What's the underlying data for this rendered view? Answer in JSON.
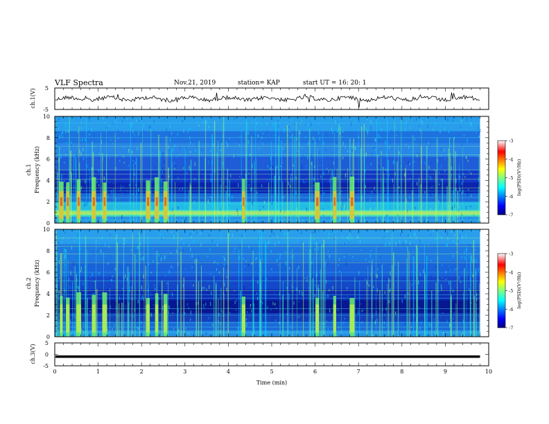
{
  "header": {
    "title": "VLF Spectra",
    "date": "Nov.21, 2019",
    "station": "station= KAP",
    "start": "start  UT =   16: 20: 1"
  },
  "chart_data": [
    {
      "type": "line",
      "title": "",
      "ylabel": "ch.1(V)",
      "xlim": [
        0,
        10
      ],
      "ylim": [
        -5,
        5
      ],
      "yticks": [
        "5",
        "-5"
      ],
      "trace": "noisy waveform centred near 0 V"
    },
    {
      "type": "heatmap",
      "ylabel": "Frequency  (kHz)",
      "channel_label": "ch.1",
      "xlim": [
        0,
        10
      ],
      "ylim": [
        0,
        10
      ],
      "yticks": [
        "0",
        "2",
        "4",
        "6",
        "8",
        "10"
      ],
      "data_xmax": 9.8,
      "colorbar": {
        "label": "log(PSD)(V²/Hz)",
        "ticks": [
          "-3",
          "-4",
          "-5",
          "-6",
          "-7"
        ],
        "range": [
          -7,
          -3
        ]
      },
      "bursts_min": [
        0.15,
        0.3,
        0.55,
        0.9,
        1.15,
        2.15,
        2.35,
        2.55,
        4.35,
        6.05,
        6.45,
        6.85
      ]
    },
    {
      "type": "heatmap",
      "ylabel": "Frequency  (kHz)",
      "channel_label": "ch.2",
      "xlim": [
        0,
        10
      ],
      "ylim": [
        0,
        10
      ],
      "yticks": [
        "0",
        "2",
        "4",
        "6",
        "8",
        "10"
      ],
      "data_xmax": 9.8,
      "colorbar": {
        "label": "log(PSD)(V²/Hz)",
        "ticks": [
          "-3",
          "-4",
          "-5",
          "-6",
          "-7"
        ],
        "range": [
          -7,
          -3
        ]
      },
      "bursts_min": [
        0.15,
        0.3,
        0.55,
        0.9,
        1.15,
        2.15,
        2.35,
        2.55,
        4.35,
        6.05,
        6.45,
        6.85
      ]
    },
    {
      "type": "line",
      "ylabel": "ch.3(V)",
      "xlabel": "Time  (min)",
      "xlim": [
        0,
        10
      ],
      "ylim": [
        -5,
        5
      ],
      "yticks": [
        "5",
        "0",
        "-5"
      ],
      "xticks": [
        "0",
        "1",
        "2",
        "3",
        "4",
        "5",
        "6",
        "7",
        "8",
        "9",
        "10"
      ],
      "trace_value": -1,
      "data_xmax": 9.8
    }
  ],
  "colors": {
    "frame": "#000000",
    "colormap": [
      "#00007f",
      "#0000ff",
      "#00ffff",
      "#80ff80",
      "#ffff00",
      "#ff0000",
      "#ffffff"
    ]
  }
}
